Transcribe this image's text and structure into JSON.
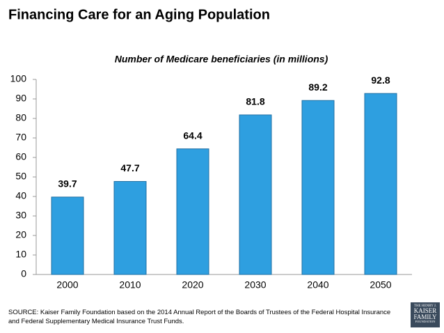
{
  "chart_data": {
    "type": "bar",
    "title": "Financing Care for an Aging Population",
    "subtitle": "Number of Medicare beneficiaries (in millions)",
    "categories": [
      "2000",
      "2010",
      "2020",
      "2030",
      "2040",
      "2050"
    ],
    "values": [
      39.7,
      47.7,
      64.4,
      81.8,
      89.2,
      92.8
    ],
    "color": "#2e9fe0",
    "ylim": [
      0,
      100
    ],
    "yticks": [
      0,
      10,
      20,
      30,
      40,
      50,
      60,
      70,
      80,
      90,
      100
    ],
    "grid": false,
    "source": "SOURCE:  Kaiser Family Foundation based on the 2014 Annual Report of the Boards of Trustees of the Federal Hospital Insurance and Federal Supplementary Medical Insurance Trust Funds."
  },
  "logo": {
    "line1": "THE HENRY J.",
    "line2": "KAISER",
    "line3": "FAMILY",
    "line4": "FOUNDATION"
  }
}
